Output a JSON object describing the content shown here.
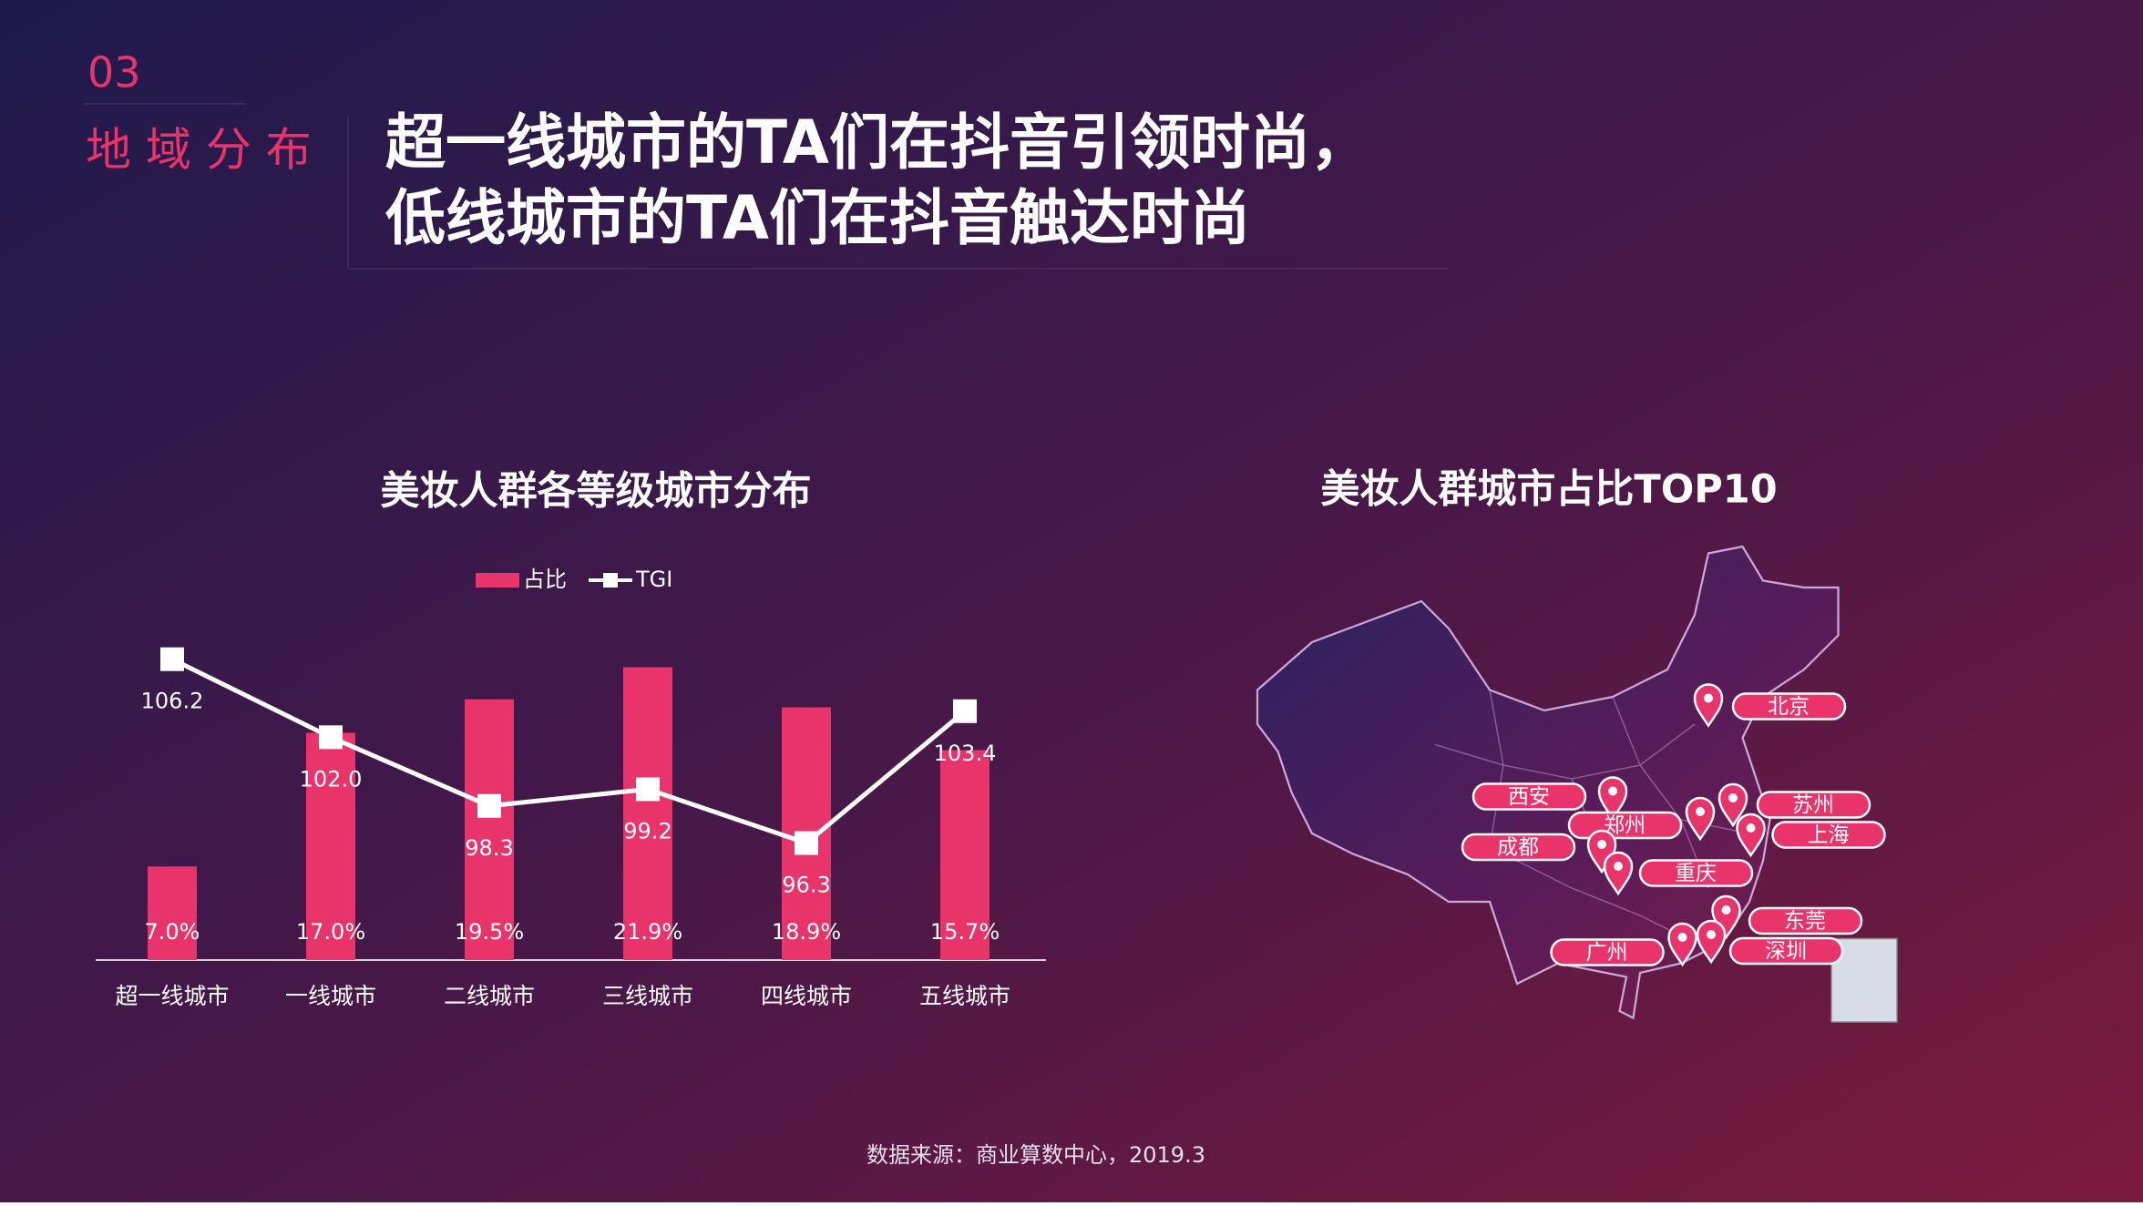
{
  "header": {
    "section_number": "03",
    "section_title": "地 域 分 布",
    "headline": [
      "超一线城市的TA们在抖音引领时尚，",
      "低线城市的TA们在抖音触达时尚"
    ]
  },
  "chart_data": {
    "type": "bar",
    "title": "美妆人群各等级城市分布",
    "categories": [
      "超一线城市",
      "一线城市",
      "二线城市",
      "三线城市",
      "四线城市",
      "五线城市"
    ],
    "series": [
      {
        "name": "占比",
        "type": "bar",
        "color": "#e8336b",
        "values": [
          7.0,
          17.0,
          19.5,
          21.9,
          18.9,
          15.7
        ],
        "value_labels": [
          "7.0%",
          "17.0%",
          "19.5%",
          "21.9%",
          "18.9%",
          "15.7%"
        ]
      },
      {
        "name": "TGI",
        "type": "line",
        "axis": "y2",
        "color": "#ffffff",
        "values": [
          106.2,
          102.0,
          98.3,
          99.2,
          96.3,
          103.4
        ],
        "value_labels": [
          "106.2",
          "102.0",
          "98.3",
          "99.2",
          "96.3",
          "103.4"
        ]
      }
    ],
    "ylim": [
      0,
      25
    ],
    "y2lim": [
      90,
      108
    ],
    "legend": "top"
  },
  "map": {
    "title": "美妆人群城市占比TOP10",
    "cities": [
      "北京",
      "苏州",
      "上海",
      "西安",
      "郑州",
      "成都",
      "重庆",
      "东莞",
      "广州",
      "深圳"
    ]
  },
  "source": "数据来源：商业算数中心，2019.3"
}
